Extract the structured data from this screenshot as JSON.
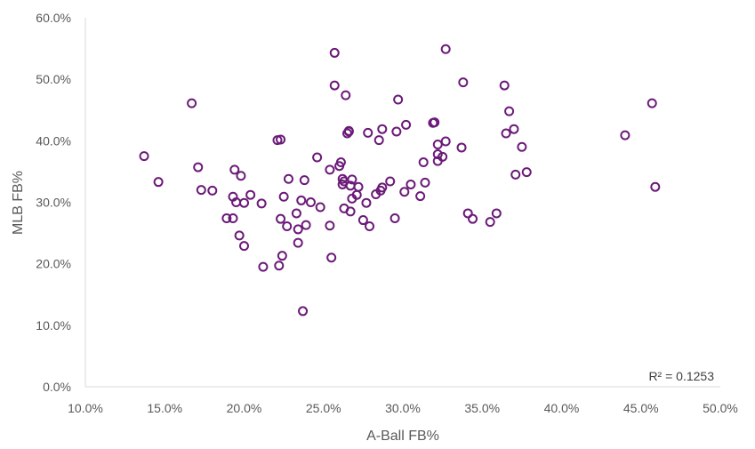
{
  "chart_data": {
    "type": "scatter",
    "xlabel": "A-Ball FB%",
    "ylabel": "MLB FB%",
    "xlim": [
      0.1,
      0.5
    ],
    "ylim": [
      0.0,
      0.6
    ],
    "x_ticks": [
      "10.0%",
      "15.0%",
      "20.0%",
      "25.0%",
      "30.0%",
      "35.0%",
      "40.0%",
      "45.0%",
      "50.0%"
    ],
    "y_ticks": [
      "0.0%",
      "10.0%",
      "20.0%",
      "30.0%",
      "40.0%",
      "50.0%",
      "60.0%"
    ],
    "annotation": "R² = 0.1253",
    "marker_color": "#6b1a78",
    "grid": false,
    "points": [
      {
        "x": 0.137,
        "y": 0.375
      },
      {
        "x": 0.146,
        "y": 0.333
      },
      {
        "x": 0.167,
        "y": 0.461
      },
      {
        "x": 0.171,
        "y": 0.357
      },
      {
        "x": 0.173,
        "y": 0.32
      },
      {
        "x": 0.18,
        "y": 0.319
      },
      {
        "x": 0.189,
        "y": 0.274
      },
      {
        "x": 0.193,
        "y": 0.309
      },
      {
        "x": 0.194,
        "y": 0.353
      },
      {
        "x": 0.193,
        "y": 0.274
      },
      {
        "x": 0.195,
        "y": 0.3
      },
      {
        "x": 0.197,
        "y": 0.246
      },
      {
        "x": 0.198,
        "y": 0.343
      },
      {
        "x": 0.2,
        "y": 0.299
      },
      {
        "x": 0.2,
        "y": 0.229
      },
      {
        "x": 0.204,
        "y": 0.312
      },
      {
        "x": 0.211,
        "y": 0.298
      },
      {
        "x": 0.212,
        "y": 0.195
      },
      {
        "x": 0.221,
        "y": 0.401
      },
      {
        "x": 0.223,
        "y": 0.402
      },
      {
        "x": 0.222,
        "y": 0.197
      },
      {
        "x": 0.223,
        "y": 0.273
      },
      {
        "x": 0.224,
        "y": 0.213
      },
      {
        "x": 0.225,
        "y": 0.309
      },
      {
        "x": 0.227,
        "y": 0.261
      },
      {
        "x": 0.228,
        "y": 0.338
      },
      {
        "x": 0.233,
        "y": 0.282
      },
      {
        "x": 0.234,
        "y": 0.256
      },
      {
        "x": 0.234,
        "y": 0.234
      },
      {
        "x": 0.236,
        "y": 0.303
      },
      {
        "x": 0.237,
        "y": 0.123
      },
      {
        "x": 0.238,
        "y": 0.336
      },
      {
        "x": 0.239,
        "y": 0.263
      },
      {
        "x": 0.242,
        "y": 0.3
      },
      {
        "x": 0.246,
        "y": 0.373
      },
      {
        "x": 0.248,
        "y": 0.292
      },
      {
        "x": 0.254,
        "y": 0.353
      },
      {
        "x": 0.254,
        "y": 0.262
      },
      {
        "x": 0.255,
        "y": 0.21
      },
      {
        "x": 0.257,
        "y": 0.543
      },
      {
        "x": 0.257,
        "y": 0.49
      },
      {
        "x": 0.26,
        "y": 0.359
      },
      {
        "x": 0.261,
        "y": 0.365
      },
      {
        "x": 0.262,
        "y": 0.338
      },
      {
        "x": 0.262,
        "y": 0.329
      },
      {
        "x": 0.263,
        "y": 0.334
      },
      {
        "x": 0.263,
        "y": 0.29
      },
      {
        "x": 0.264,
        "y": 0.474
      },
      {
        "x": 0.265,
        "y": 0.412
      },
      {
        "x": 0.266,
        "y": 0.416
      },
      {
        "x": 0.266,
        "y": 0.415
      },
      {
        "x": 0.267,
        "y": 0.285
      },
      {
        "x": 0.267,
        "y": 0.327
      },
      {
        "x": 0.268,
        "y": 0.337
      },
      {
        "x": 0.268,
        "y": 0.306
      },
      {
        "x": 0.271,
        "y": 0.312
      },
      {
        "x": 0.272,
        "y": 0.325
      },
      {
        "x": 0.275,
        "y": 0.271
      },
      {
        "x": 0.277,
        "y": 0.299
      },
      {
        "x": 0.278,
        "y": 0.413
      },
      {
        "x": 0.279,
        "y": 0.261
      },
      {
        "x": 0.283,
        "y": 0.313
      },
      {
        "x": 0.285,
        "y": 0.401
      },
      {
        "x": 0.286,
        "y": 0.319
      },
      {
        "x": 0.287,
        "y": 0.324
      },
      {
        "x": 0.287,
        "y": 0.419
      },
      {
        "x": 0.292,
        "y": 0.334
      },
      {
        "x": 0.295,
        "y": 0.274
      },
      {
        "x": 0.296,
        "y": 0.415
      },
      {
        "x": 0.297,
        "y": 0.467
      },
      {
        "x": 0.301,
        "y": 0.317
      },
      {
        "x": 0.302,
        "y": 0.426
      },
      {
        "x": 0.305,
        "y": 0.329
      },
      {
        "x": 0.311,
        "y": 0.31
      },
      {
        "x": 0.313,
        "y": 0.365
      },
      {
        "x": 0.314,
        "y": 0.332
      },
      {
        "x": 0.319,
        "y": 0.429
      },
      {
        "x": 0.32,
        "y": 0.43
      },
      {
        "x": 0.322,
        "y": 0.378
      },
      {
        "x": 0.322,
        "y": 0.367
      },
      {
        "x": 0.322,
        "y": 0.394
      },
      {
        "x": 0.325,
        "y": 0.374
      },
      {
        "x": 0.327,
        "y": 0.399
      },
      {
        "x": 0.327,
        "y": 0.549
      },
      {
        "x": 0.337,
        "y": 0.389
      },
      {
        "x": 0.338,
        "y": 0.495
      },
      {
        "x": 0.341,
        "y": 0.282
      },
      {
        "x": 0.344,
        "y": 0.273
      },
      {
        "x": 0.355,
        "y": 0.268
      },
      {
        "x": 0.359,
        "y": 0.282
      },
      {
        "x": 0.364,
        "y": 0.49
      },
      {
        "x": 0.365,
        "y": 0.412
      },
      {
        "x": 0.367,
        "y": 0.448
      },
      {
        "x": 0.37,
        "y": 0.419
      },
      {
        "x": 0.371,
        "y": 0.345
      },
      {
        "x": 0.375,
        "y": 0.39
      },
      {
        "x": 0.378,
        "y": 0.349
      },
      {
        "x": 0.44,
        "y": 0.409
      },
      {
        "x": 0.457,
        "y": 0.461
      },
      {
        "x": 0.459,
        "y": 0.325
      }
    ]
  }
}
